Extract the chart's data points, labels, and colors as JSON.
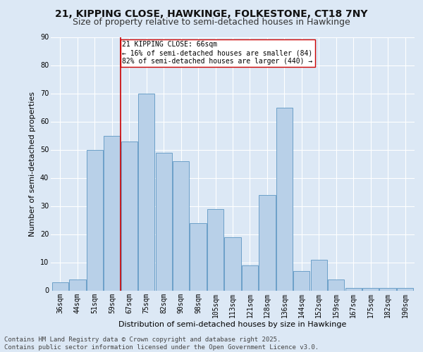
{
  "title": "21, KIPPING CLOSE, HAWKINGE, FOLKESTONE, CT18 7NY",
  "subtitle": "Size of property relative to semi-detached houses in Hawkinge",
  "xlabel": "Distribution of semi-detached houses by size in Hawkinge",
  "ylabel": "Number of semi-detached properties",
  "footer_line1": "Contains HM Land Registry data © Crown copyright and database right 2025.",
  "footer_line2": "Contains public sector information licensed under the Open Government Licence v3.0.",
  "categories": [
    "36sqm",
    "44sqm",
    "51sqm",
    "59sqm",
    "67sqm",
    "75sqm",
    "82sqm",
    "90sqm",
    "98sqm",
    "105sqm",
    "113sqm",
    "121sqm",
    "128sqm",
    "136sqm",
    "144sqm",
    "152sqm",
    "159sqm",
    "167sqm",
    "175sqm",
    "182sqm",
    "190sqm"
  ],
  "values": [
    3,
    4,
    50,
    55,
    53,
    70,
    49,
    46,
    24,
    29,
    19,
    9,
    34,
    65,
    7,
    11,
    4,
    1,
    1,
    1,
    1
  ],
  "bar_color": "#b8d0e8",
  "bar_edge_color": "#6ca0c8",
  "red_line_color": "#cc0000",
  "red_line_x": 3.5,
  "annotation_text_line1": "21 KIPPING CLOSE: 66sqm",
  "annotation_text_line2": "← 16% of semi-detached houses are smaller (84)",
  "annotation_text_line3": "82% of semi-detached houses are larger (440) →",
  "annotation_box_facecolor": "#ffffff",
  "annotation_box_edgecolor": "#cc0000",
  "ylim": [
    0,
    90
  ],
  "yticks": [
    0,
    10,
    20,
    30,
    40,
    50,
    60,
    70,
    80,
    90
  ],
  "background_color": "#dce8f5",
  "grid_color": "#ffffff",
  "title_fontsize": 10,
  "subtitle_fontsize": 9,
  "ylabel_fontsize": 8,
  "xlabel_fontsize": 8,
  "tick_fontsize": 7,
  "annotation_fontsize": 7,
  "footer_fontsize": 6.5
}
